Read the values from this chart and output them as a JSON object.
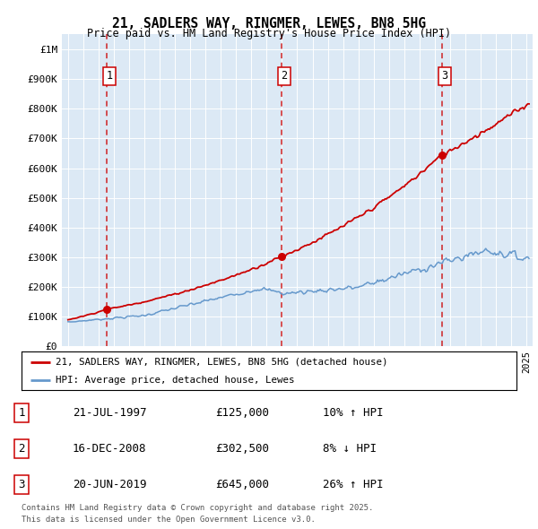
{
  "title": "21, SADLERS WAY, RINGMER, LEWES, BN8 5HG",
  "subtitle": "Price paid vs. HM Land Registry's House Price Index (HPI)",
  "bg_color": "#dce9f5",
  "red_line_color": "#cc0000",
  "blue_line_color": "#6699cc",
  "dashed_line_color": "#cc0000",
  "legend_label_red": "21, SADLERS WAY, RINGMER, LEWES, BN8 5HG (detached house)",
  "legend_label_blue": "HPI: Average price, detached house, Lewes",
  "transactions": [
    {
      "num": 1,
      "date": "21-JUL-1997",
      "price": 125000,
      "pct": "10%",
      "dir": "↑",
      "x_year": 1997.54
    },
    {
      "num": 2,
      "date": "16-DEC-2008",
      "price": 302500,
      "pct": "8%",
      "dir": "↓",
      "x_year": 2008.96
    },
    {
      "num": 3,
      "date": "20-JUN-2019",
      "price": 645000,
      "pct": "26%",
      "dir": "↑",
      "x_year": 2019.46
    }
  ],
  "footer_line1": "Contains HM Land Registry data © Crown copyright and database right 2025.",
  "footer_line2": "This data is licensed under the Open Government Licence v3.0.",
  "ylim": [
    0,
    1050000
  ],
  "xlim_start": 1994.6,
  "xlim_end": 2025.4
}
